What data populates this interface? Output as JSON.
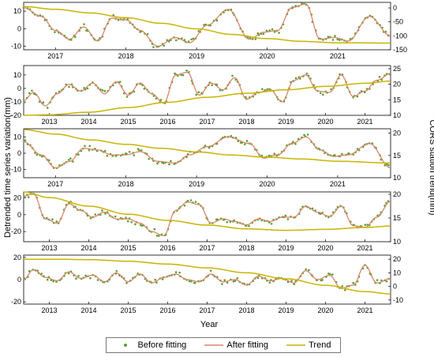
{
  "colors": {
    "before": "#5a9e2f",
    "after": "#d9866a",
    "trend": "#c9b400",
    "axis": "#000000"
  },
  "axes": {
    "ylabel_left": "Detrended time series variation(mm)",
    "ylabel_right": "CORS station trend(mm)",
    "xlabel": "Year"
  },
  "legend": {
    "before": "Before fitting",
    "after": "After fitting",
    "trend": "Trend"
  },
  "chart_data": [
    {
      "type": "line",
      "x_range": [
        2016.55,
        2021.75
      ],
      "x_ticks": [
        "2017",
        "2018",
        "2019",
        "2020",
        "2021"
      ],
      "y_left": {
        "range": [
          -12,
          15
        ],
        "ticks": [
          "10",
          "0",
          "-10"
        ]
      },
      "y_right": {
        "range": [
          -150,
          20
        ],
        "ticks": [
          "0",
          "-50",
          "-100",
          "-150"
        ]
      },
      "after_fitting": [
        [
          2016.55,
          12
        ],
        [
          2016.8,
          7
        ],
        [
          2017.0,
          -1
        ],
        [
          2017.2,
          -6
        ],
        [
          2017.4,
          1
        ],
        [
          2017.6,
          -7
        ],
        [
          2017.8,
          6
        ],
        [
          2018.0,
          5
        ],
        [
          2018.2,
          -1
        ],
        [
          2018.45,
          -10
        ],
        [
          2018.7,
          -5
        ],
        [
          2018.9,
          -8
        ],
        [
          2019.15,
          2
        ],
        [
          2019.45,
          11
        ],
        [
          2019.75,
          -6
        ],
        [
          2019.95,
          -2
        ],
        [
          2020.15,
          -1
        ],
        [
          2020.35,
          12
        ],
        [
          2020.55,
          14
        ],
        [
          2020.75,
          -6
        ],
        [
          2020.95,
          -5
        ],
        [
          2021.15,
          -7
        ],
        [
          2021.45,
          7
        ],
        [
          2021.75,
          -4
        ]
      ],
      "trend": [
        [
          2016.55,
          5
        ],
        [
          2017.0,
          -5
        ],
        [
          2017.5,
          -18
        ],
        [
          2018.0,
          -35
        ],
        [
          2018.5,
          -55
        ],
        [
          2019.0,
          -75
        ],
        [
          2019.5,
          -95
        ],
        [
          2020.0,
          -110
        ],
        [
          2020.5,
          -120
        ],
        [
          2021.0,
          -125
        ],
        [
          2021.75,
          -126
        ]
      ]
    },
    {
      "type": "line",
      "x_range": [
        2012.35,
        2021.65
      ],
      "x_ticks": [
        "2013",
        "2014",
        "2015",
        "2016",
        "2017",
        "2018",
        "2019",
        "2020",
        "2021"
      ],
      "y_left": {
        "range": [
          -20,
          17
        ],
        "ticks": [
          "10",
          "0",
          "-10",
          "-20"
        ]
      },
      "y_right": {
        "range": [
          10,
          26
        ],
        "ticks": [
          "25",
          "20",
          "15",
          "10"
        ]
      },
      "after_fitting": [
        [
          2012.35,
          -9
        ],
        [
          2012.6,
          -3
        ],
        [
          2012.9,
          -13
        ],
        [
          2013.2,
          -4
        ],
        [
          2013.5,
          3
        ],
        [
          2013.8,
          -2
        ],
        [
          2014.1,
          4
        ],
        [
          2014.4,
          -4
        ],
        [
          2014.7,
          5
        ],
        [
          2015.0,
          -5
        ],
        [
          2015.3,
          4
        ],
        [
          2015.6,
          -4
        ],
        [
          2015.9,
          -11
        ],
        [
          2016.2,
          10
        ],
        [
          2016.5,
          12
        ],
        [
          2016.8,
          -5
        ],
        [
          2017.1,
          4
        ],
        [
          2017.4,
          -1
        ],
        [
          2017.7,
          8
        ],
        [
          2018.0,
          -8
        ],
        [
          2018.3,
          -3
        ],
        [
          2018.6,
          -1
        ],
        [
          2018.9,
          -10
        ],
        [
          2019.2,
          6
        ],
        [
          2019.5,
          10
        ],
        [
          2019.8,
          -2
        ],
        [
          2020.1,
          -3
        ],
        [
          2020.4,
          10
        ],
        [
          2020.7,
          -6
        ],
        [
          2021.0,
          -2
        ],
        [
          2021.3,
          6
        ],
        [
          2021.65,
          11
        ]
      ],
      "trend": [
        [
          2012.35,
          10
        ],
        [
          2013.0,
          10.2
        ],
        [
          2014.0,
          11
        ],
        [
          2015.0,
          12.5
        ],
        [
          2016.0,
          14.2
        ],
        [
          2017.0,
          15.8
        ],
        [
          2018.0,
          17.1
        ],
        [
          2019.0,
          18.2
        ],
        [
          2020.0,
          19.3
        ],
        [
          2021.0,
          20.3
        ],
        [
          2021.65,
          21
        ]
      ]
    },
    {
      "type": "line",
      "x_range": [
        2016.55,
        2021.75
      ],
      "x_ticks": [
        "2017",
        "2018",
        "2019",
        "2020",
        "2021"
      ],
      "y_left": {
        "range": [
          -15,
          15
        ],
        "ticks": [
          "10",
          "0",
          "-10"
        ]
      },
      "y_right": {
        "range": [
          10,
          21
        ],
        "ticks": [
          "20",
          "15",
          "10"
        ]
      },
      "after_fitting": [
        [
          2016.55,
          7
        ],
        [
          2016.8,
          -1
        ],
        [
          2017.0,
          -9
        ],
        [
          2017.2,
          -5
        ],
        [
          2017.4,
          3
        ],
        [
          2017.6,
          2
        ],
        [
          2017.8,
          -1
        ],
        [
          2018.0,
          -1
        ],
        [
          2018.2,
          1
        ],
        [
          2018.45,
          -5
        ],
        [
          2018.7,
          -6
        ],
        [
          2018.9,
          -1
        ],
        [
          2019.15,
          4
        ],
        [
          2019.45,
          10
        ],
        [
          2019.75,
          6
        ],
        [
          2019.95,
          -3
        ],
        [
          2020.15,
          -1
        ],
        [
          2020.35,
          6
        ],
        [
          2020.55,
          10
        ],
        [
          2020.75,
          2
        ],
        [
          2020.95,
          -2
        ],
        [
          2021.15,
          -1
        ],
        [
          2021.45,
          6
        ],
        [
          2021.75,
          -9
        ]
      ],
      "trend": [
        [
          2016.55,
          20.8
        ],
        [
          2017.0,
          19.8
        ],
        [
          2017.5,
          18.5
        ],
        [
          2018.0,
          17.5
        ],
        [
          2018.5,
          16.6
        ],
        [
          2019.0,
          15.8
        ],
        [
          2019.5,
          15.1
        ],
        [
          2020.0,
          14.6
        ],
        [
          2020.5,
          14.2
        ],
        [
          2021.0,
          13.7
        ],
        [
          2021.75,
          13.3
        ]
      ]
    },
    {
      "type": "line",
      "x_range": [
        2012.35,
        2021.65
      ],
      "x_ticks": [
        "2013",
        "2014",
        "2015",
        "2016",
        "2017",
        "2018",
        "2019",
        "2020",
        "2021"
      ],
      "y_left": {
        "range": [
          -32,
          27
        ],
        "ticks": [
          "20",
          "0",
          "-20"
        ]
      },
      "y_right": {
        "range": [
          10,
          20.5
        ],
        "ticks": [
          "20",
          "15",
          "10"
        ]
      },
      "after_fitting": [
        [
          2012.35,
          22
        ],
        [
          2012.6,
          25
        ],
        [
          2012.9,
          -5
        ],
        [
          2013.2,
          -10
        ],
        [
          2013.5,
          13
        ],
        [
          2013.8,
          5
        ],
        [
          2014.1,
          -3
        ],
        [
          2014.4,
          3
        ],
        [
          2014.7,
          -5
        ],
        [
          2015.0,
          -5
        ],
        [
          2015.3,
          -10
        ],
        [
          2015.6,
          -20
        ],
        [
          2015.9,
          -25
        ],
        [
          2016.2,
          5
        ],
        [
          2016.5,
          15
        ],
        [
          2016.8,
          12
        ],
        [
          2017.1,
          -10
        ],
        [
          2017.4,
          -5
        ],
        [
          2017.7,
          -8
        ],
        [
          2018.0,
          -12
        ],
        [
          2018.3,
          -5
        ],
        [
          2018.6,
          -8
        ],
        [
          2018.9,
          -3
        ],
        [
          2019.2,
          -3
        ],
        [
          2019.5,
          10
        ],
        [
          2019.8,
          3
        ],
        [
          2020.1,
          -2
        ],
        [
          2020.4,
          10
        ],
        [
          2020.7,
          -13
        ],
        [
          2021.0,
          -15
        ],
        [
          2021.3,
          -3
        ],
        [
          2021.65,
          16
        ]
      ],
      "trend": [
        [
          2012.35,
          20.5
        ],
        [
          2013.0,
          19.3
        ],
        [
          2014.0,
          17.5
        ],
        [
          2015.0,
          15.8
        ],
        [
          2016.0,
          14.5
        ],
        [
          2017.0,
          13.5
        ],
        [
          2018.0,
          12.7
        ],
        [
          2019.0,
          12.4
        ],
        [
          2020.0,
          12.6
        ],
        [
          2021.0,
          13.0
        ],
        [
          2021.65,
          13.3
        ]
      ]
    },
    {
      "type": "line",
      "x_range": [
        2012.35,
        2021.65
      ],
      "x_ticks": [
        "2013",
        "2014",
        "2015",
        "2016",
        "2017",
        "2018",
        "2019",
        "2020",
        "2021"
      ],
      "y_left": {
        "range": [
          -22,
          22
        ],
        "ticks": [
          "20",
          "0",
          "-20"
        ]
      },
      "y_right": {
        "range": [
          -13,
          23
        ],
        "ticks": [
          "20",
          "10",
          "0",
          "-10"
        ]
      },
      "after_fitting": [
        [
          2012.35,
          0
        ],
        [
          2012.6,
          9
        ],
        [
          2012.9,
          2
        ],
        [
          2013.2,
          -1
        ],
        [
          2013.5,
          7
        ],
        [
          2013.8,
          1
        ],
        [
          2014.1,
          4
        ],
        [
          2014.4,
          -2
        ],
        [
          2014.7,
          6
        ],
        [
          2015.0,
          -2
        ],
        [
          2015.3,
          5
        ],
        [
          2015.6,
          -3
        ],
        [
          2015.9,
          2
        ],
        [
          2016.2,
          5
        ],
        [
          2016.5,
          0
        ],
        [
          2016.8,
          -2
        ],
        [
          2017.1,
          5
        ],
        [
          2017.4,
          -2
        ],
        [
          2017.7,
          0
        ],
        [
          2018.0,
          -5
        ],
        [
          2018.3,
          3
        ],
        [
          2018.6,
          -1
        ],
        [
          2018.9,
          1
        ],
        [
          2019.2,
          -3
        ],
        [
          2019.5,
          8
        ],
        [
          2019.8,
          0
        ],
        [
          2020.1,
          4
        ],
        [
          2020.4,
          -8
        ],
        [
          2020.7,
          -5
        ],
        [
          2021.0,
          13
        ],
        [
          2021.3,
          -3
        ],
        [
          2021.65,
          1
        ]
      ],
      "trend": [
        [
          2012.35,
          20
        ],
        [
          2013.0,
          20
        ],
        [
          2014.0,
          19.7
        ],
        [
          2015.0,
          18.5
        ],
        [
          2016.0,
          16.4
        ],
        [
          2017.0,
          13.6
        ],
        [
          2018.0,
          10.0
        ],
        [
          2019.0,
          5.6
        ],
        [
          2020.0,
          0.8
        ],
        [
          2021.0,
          -3.8
        ],
        [
          2021.65,
          -5.5
        ]
      ]
    }
  ]
}
